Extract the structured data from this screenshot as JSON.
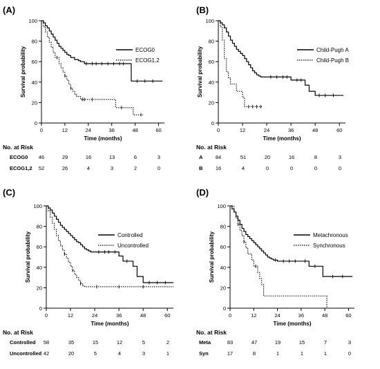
{
  "chart_data": [
    {
      "type": "line",
      "panel_label": "(A)",
      "xlabel": "Time (months)",
      "ylabel": "Survival probability",
      "xlim": [
        0,
        63
      ],
      "ylim": [
        0,
        100
      ],
      "xticks": [
        0,
        12,
        24,
        36,
        48,
        60
      ],
      "yticks": [
        0,
        20,
        40,
        60,
        80,
        100
      ],
      "legend_position": "top-right",
      "series": [
        {
          "name": "ECOG0",
          "style": "solid",
          "x": [
            0,
            1,
            2,
            3,
            4,
            5,
            6,
            7,
            8,
            9,
            10,
            11,
            12,
            13,
            14,
            15,
            17,
            19,
            20,
            22,
            45,
            46,
            62
          ],
          "y": [
            100,
            98,
            95,
            93,
            90,
            87,
            84,
            81,
            78,
            75,
            73,
            71,
            69,
            67,
            66,
            64,
            62,
            61,
            60,
            58,
            58,
            41,
            41
          ],
          "censor_x": [
            23,
            26,
            28,
            31,
            34,
            37,
            40,
            42,
            49,
            53,
            57
          ]
        },
        {
          "name": "ECOG1,2",
          "style": "dotted",
          "x": [
            0,
            1,
            2,
            3,
            4,
            5,
            6,
            7,
            9,
            10,
            11,
            12,
            13,
            14,
            15,
            16,
            17,
            18,
            20,
            24,
            27,
            38,
            44,
            47,
            48,
            52
          ],
          "y": [
            100,
            94,
            89,
            84,
            79,
            74,
            69,
            64,
            58,
            54,
            50,
            46,
            42,
            38,
            34,
            31,
            28,
            26,
            23,
            23,
            23,
            15,
            15,
            8,
            8,
            8
          ],
          "censor_x": [
            8,
            12,
            15,
            21,
            22,
            26,
            41,
            51
          ]
        }
      ],
      "risk_table": {
        "header": "No. at Risk",
        "rows": [
          {
            "label": "ECOG0",
            "values": [
              "46",
              "29",
              "16",
              "13",
              "6",
              "3"
            ]
          },
          {
            "label": "ECOG1,2",
            "values": [
              "52",
              "26",
              "4",
              "3",
              "2",
              "0"
            ]
          }
        ]
      }
    },
    {
      "type": "line",
      "panel_label": "(B)",
      "xlabel": "Time (months)",
      "ylabel": "Survival probability",
      "xlim": [
        0,
        63
      ],
      "ylim": [
        0,
        100
      ],
      "xticks": [
        0,
        12,
        24,
        36,
        48,
        60
      ],
      "yticks": [
        0,
        20,
        40,
        60,
        80,
        100
      ],
      "legend_position": "top-right",
      "series": [
        {
          "name": "Child-Pugh A",
          "style": "solid",
          "x": [
            0,
            1,
            2,
            3,
            4,
            5,
            6,
            7,
            8,
            9,
            10,
            11,
            12,
            13,
            14,
            15,
            16,
            17,
            18,
            19,
            20,
            21,
            22,
            23,
            24,
            36,
            43,
            45,
            48,
            62
          ],
          "y": [
            100,
            98,
            96,
            93,
            89,
            85,
            81,
            78,
            75,
            72,
            70,
            68,
            66,
            63,
            60,
            57,
            54,
            51,
            49,
            47,
            46,
            45,
            45,
            45,
            45,
            42,
            37,
            31,
            27,
            27
          ],
          "censor_x": [
            26,
            29,
            32,
            34,
            39,
            41,
            50,
            53,
            57
          ]
        },
        {
          "name": "Child-Pugh B",
          "style": "dotted",
          "x": [
            0,
            1,
            2,
            3,
            4,
            5,
            6,
            8,
            9,
            10,
            12,
            13,
            14,
            22
          ],
          "y": [
            100,
            94,
            81,
            63,
            50,
            44,
            38,
            38,
            31,
            31,
            25,
            16,
            16,
            16
          ],
          "censor_x": [
            15,
            17,
            19,
            21
          ]
        }
      ],
      "risk_table": {
        "header": "No. at Risk",
        "rows": [
          {
            "label": "A",
            "values": [
              "84",
              "51",
              "20",
              "16",
              "8",
              "3"
            ]
          },
          {
            "label": "B",
            "values": [
              "16",
              "4",
              "0",
              "0",
              "0",
              "0"
            ]
          }
        ]
      }
    },
    {
      "type": "line",
      "panel_label": "(C)",
      "xlabel": "Time (months)",
      "ylabel": "Survival probability",
      "xlim": [
        0,
        63
      ],
      "ylim": [
        0,
        100
      ],
      "xticks": [
        0,
        12,
        24,
        36,
        48,
        60
      ],
      "yticks": [
        0,
        20,
        40,
        60,
        80,
        100
      ],
      "legend_position": "top-right",
      "series": [
        {
          "name": "Controlled",
          "style": "solid",
          "x": [
            0,
            1,
            2,
            3,
            4,
            5,
            6,
            7,
            8,
            9,
            10,
            11,
            12,
            13,
            14,
            15,
            16,
            17,
            18,
            19,
            20,
            21,
            22,
            23,
            24,
            36,
            38,
            43,
            45,
            48,
            63
          ],
          "y": [
            100,
            98,
            96,
            93,
            90,
            87,
            84,
            81,
            79,
            77,
            75,
            73,
            71,
            69,
            67,
            65,
            64,
            62,
            60,
            58,
            57,
            56,
            55,
            55,
            55,
            51,
            46,
            41,
            31,
            25,
            25
          ],
          "censor_x": [
            26,
            29,
            31,
            34,
            40,
            51,
            55,
            59
          ]
        },
        {
          "name": "Uncontrolled",
          "style": "dotted",
          "x": [
            0,
            1,
            2,
            3,
            4,
            5,
            6,
            7,
            8,
            9,
            10,
            11,
            12,
            13,
            14,
            15,
            16,
            17,
            18,
            19,
            63
          ],
          "y": [
            100,
            95,
            89,
            83,
            77,
            71,
            66,
            61,
            57,
            53,
            49,
            45,
            41,
            37,
            33,
            30,
            27,
            24,
            22,
            21,
            21
          ],
          "censor_x": [
            9,
            13,
            17,
            25,
            36,
            48
          ]
        }
      ],
      "risk_table": {
        "header": "No. at Risk",
        "rows": [
          {
            "label": "Controlled",
            "values": [
              "58",
              "35",
              "15",
              "12",
              "5",
              "2"
            ]
          },
          {
            "label": "Uncontrolled",
            "values": [
              "42",
              "20",
              "5",
              "4",
              "3",
              "1"
            ]
          }
        ]
      }
    },
    {
      "type": "line",
      "panel_label": "(D)",
      "xlabel": "Time (months)",
      "ylabel": "Survival probability",
      "xlim": [
        0,
        63
      ],
      "ylim": [
        0,
        100
      ],
      "xticks": [
        0,
        12,
        24,
        36,
        48,
        60
      ],
      "yticks": [
        0,
        20,
        40,
        60,
        80,
        100
      ],
      "legend_position": "top-right",
      "series": [
        {
          "name": "Metachronous",
          "style": "solid",
          "x": [
            0,
            1,
            2,
            3,
            4,
            5,
            6,
            7,
            8,
            9,
            10,
            11,
            12,
            13,
            14,
            15,
            16,
            17,
            18,
            19,
            20,
            21,
            22,
            24,
            36,
            40,
            47,
            62
          ],
          "y": [
            100,
            97,
            94,
            90,
            86,
            82,
            78,
            75,
            72,
            70,
            68,
            66,
            64,
            62,
            60,
            58,
            56,
            54,
            52,
            50,
            49,
            48,
            47,
            46,
            46,
            41,
            31,
            31
          ],
          "censor_x": [
            23,
            27,
            30,
            33,
            38,
            43,
            52,
            57
          ]
        },
        {
          "name": "Synchronous",
          "style": "dotted",
          "x": [
            0,
            2,
            3,
            4,
            5,
            6,
            7,
            8,
            9,
            11,
            12,
            14,
            15,
            16,
            17,
            48,
            49
          ],
          "y": [
            100,
            94,
            88,
            82,
            76,
            71,
            65,
            59,
            53,
            47,
            41,
            35,
            29,
            23,
            12,
            12,
            0
          ],
          "censor_x": [
            4,
            7,
            13
          ]
        }
      ],
      "risk_table": {
        "header": "No. at Risk",
        "rows": [
          {
            "label": "Meta",
            "values": [
              "83",
              "47",
              "19",
              "15",
              "7",
              "3"
            ]
          },
          {
            "label": "Syn",
            "values": [
              "17",
              "8",
              "1",
              "1",
              "1",
              "0"
            ]
          }
        ]
      }
    }
  ]
}
